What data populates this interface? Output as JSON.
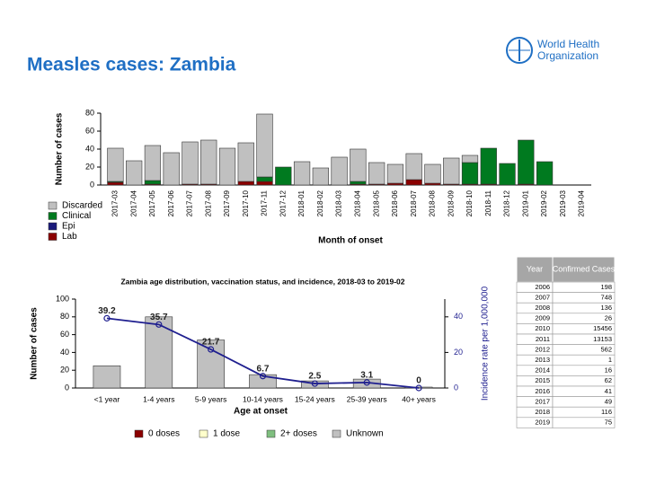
{
  "header": {
    "title": "Measles cases: Zambia",
    "logo": [
      "World Health",
      "Organization"
    ]
  },
  "chart_data": [
    {
      "type": "bar",
      "stacked": true,
      "y_label": "Number of cases",
      "x_label": "Month of onset",
      "categories": [
        "2017-03",
        "2017-04",
        "2017-05",
        "2017-06",
        "2017-07",
        "2017-08",
        "2017-09",
        "2017-10",
        "2017-11",
        "2017-12",
        "2018-01",
        "2018-02",
        "2018-03",
        "2018-04",
        "2018-05",
        "2018-06",
        "2018-07",
        "2018-08",
        "2018-09",
        "2018-10",
        "2018-11",
        "2018-12",
        "2019-01",
        "2019-02",
        "2019-03",
        "2019-04"
      ],
      "series": [
        {
          "name": "Lab",
          "color": "#8b0000",
          "values": [
            3,
            0,
            1,
            0,
            1,
            1,
            0,
            4,
            4,
            0,
            0,
            0,
            0,
            1,
            1,
            2,
            6,
            2,
            1,
            1,
            1,
            0,
            1,
            0,
            0,
            0
          ]
        },
        {
          "name": "Epi",
          "color": "#1a1a7a",
          "values": [
            0,
            0,
            0,
            0,
            0,
            0,
            0,
            0,
            0,
            0,
            0,
            0,
            0,
            0,
            0,
            0,
            0,
            0,
            0,
            0,
            0,
            0,
            0,
            0,
            0,
            0
          ]
        },
        {
          "name": "Clinical",
          "color": "#007a1f",
          "values": [
            1,
            0,
            4,
            0,
            0,
            0,
            0,
            0,
            5,
            20,
            0,
            0,
            0,
            3,
            0,
            0,
            0,
            0,
            0,
            24,
            40,
            24,
            49,
            26,
            0,
            0
          ]
        },
        {
          "name": "Discarded",
          "color": "#c0c0c0",
          "values": [
            37,
            27,
            39,
            36,
            47,
            49,
            41,
            43,
            70,
            0,
            26,
            19,
            31,
            36,
            24,
            21,
            29,
            21,
            29,
            8,
            0,
            0,
            0,
            0,
            0,
            0
          ]
        }
      ],
      "ylim": [
        0,
        80
      ],
      "yticks": [
        0,
        20,
        40,
        60,
        80
      ],
      "grid": false
    },
    {
      "type": "bar",
      "stacked": true,
      "title": "Zambia age distribution, vaccination status, and incidence, 2018-03 to 2019-02",
      "y_label": "Number of cases",
      "x_label": "Age at onset",
      "y2_label": "Incidence rate per 1,000,000",
      "categories": [
        "<1 year",
        "1-4 years",
        "5-9 years",
        "10-14 years",
        "15-24 years",
        "25-39 years",
        "40+ years"
      ],
      "series": [
        {
          "name": "0 doses",
          "color": "#8b0000",
          "values": [
            0,
            0,
            0,
            0,
            0,
            0,
            0
          ]
        },
        {
          "name": "1 dose",
          "color": "#ffffcc",
          "values": [
            0,
            0,
            0,
            0,
            0,
            0,
            0
          ]
        },
        {
          "name": "2+ doses",
          "color": "#7fbf7f",
          "values": [
            0,
            0,
            0,
            0,
            0,
            0,
            0
          ]
        },
        {
          "name": "Unknown",
          "color": "#c0c0c0",
          "values": [
            25,
            80,
            54,
            15,
            8,
            10,
            1
          ]
        },
        {
          "type": "line",
          "axis": "y2",
          "color": "#1f1f8f",
          "values": [
            39.2,
            35.7,
            21.7,
            6.7,
            2.5,
            3.1,
            0
          ]
        }
      ],
      "ylim": [
        0,
        100
      ],
      "yticks": [
        0,
        20,
        40,
        60,
        80,
        100
      ],
      "y2lim": [
        0,
        50
      ],
      "y2ticks": [
        0,
        20,
        40
      ],
      "grid": false
    }
  ],
  "table": {
    "columns": [
      "Year",
      "Confirmed Cases"
    ],
    "rows": [
      [
        "2006",
        "198"
      ],
      [
        "2007",
        "748"
      ],
      [
        "2008",
        "136"
      ],
      [
        "2009",
        "26"
      ],
      [
        "2010",
        "15456"
      ],
      [
        "2011",
        "13153"
      ],
      [
        "2012",
        "562"
      ],
      [
        "2013",
        "1"
      ],
      [
        "2014",
        "16"
      ],
      [
        "2015",
        "62"
      ],
      [
        "2016",
        "41"
      ],
      [
        "2017",
        "49"
      ],
      [
        "2018",
        "116"
      ],
      [
        "2019",
        "75"
      ]
    ]
  }
}
